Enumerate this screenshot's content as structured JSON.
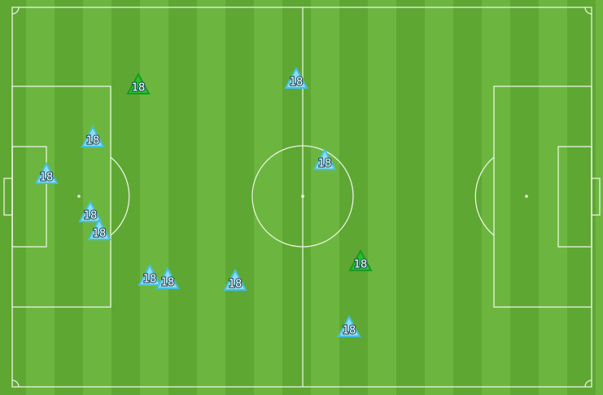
{
  "markers": [
    {
      "label": "18",
      "color": "#22c42a"
    },
    {
      "label": "18",
      "color": "#8fdcf2"
    },
    {
      "label": "18",
      "color": "#8fdcf2"
    },
    {
      "label": "18",
      "color": "#8fdcf2"
    },
    {
      "label": "18",
      "color": "#8fdcf2"
    },
    {
      "label": "18",
      "color": "#8fdcf2"
    },
    {
      "label": "18",
      "color": "#8fdcf2"
    },
    {
      "label": "18",
      "color": "#8fdcf2"
    },
    {
      "label": "18",
      "color": "#8fdcf2"
    },
    {
      "label": "18",
      "color": "#8fdcf2"
    },
    {
      "label": "18",
      "color": "#22c42a"
    },
    {
      "label": "18",
      "color": "#8fdcf2"
    }
  ]
}
